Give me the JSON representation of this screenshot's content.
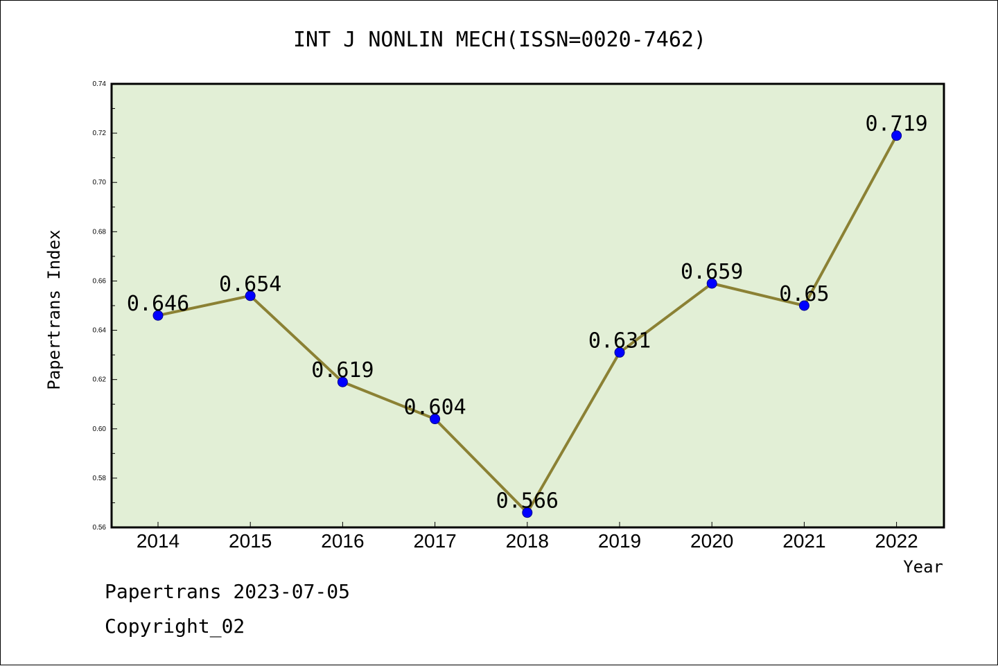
{
  "chart_data": {
    "type": "line",
    "title": "INT J NONLIN MECH(ISSN=0020-7462)",
    "xlabel": "Year",
    "ylabel": "Papertrans Index",
    "categories": [
      "2014",
      "2015",
      "2016",
      "2017",
      "2018",
      "2019",
      "2020",
      "2021",
      "2022"
    ],
    "values": [
      0.646,
      0.654,
      0.619,
      0.604,
      0.566,
      0.631,
      0.659,
      0.65,
      0.719
    ],
    "data_labels": [
      "0.646",
      "0.654",
      "0.619",
      "0.604",
      "0.566",
      "0.631",
      "0.659",
      "0.65",
      "0.719"
    ],
    "ylim": [
      0.56,
      0.74
    ],
    "yticks": [
      "0.56",
      "0.58",
      "0.60",
      "0.62",
      "0.64",
      "0.66",
      "0.68",
      "0.70",
      "0.72",
      "0.74"
    ],
    "grid": false,
    "line_color": "#8b8134",
    "marker_color": "#0000ff",
    "plot_background": "#e2efd6"
  },
  "footer": {
    "line1": "Papertrans 2023-07-05",
    "line2": "Copyright_02"
  }
}
